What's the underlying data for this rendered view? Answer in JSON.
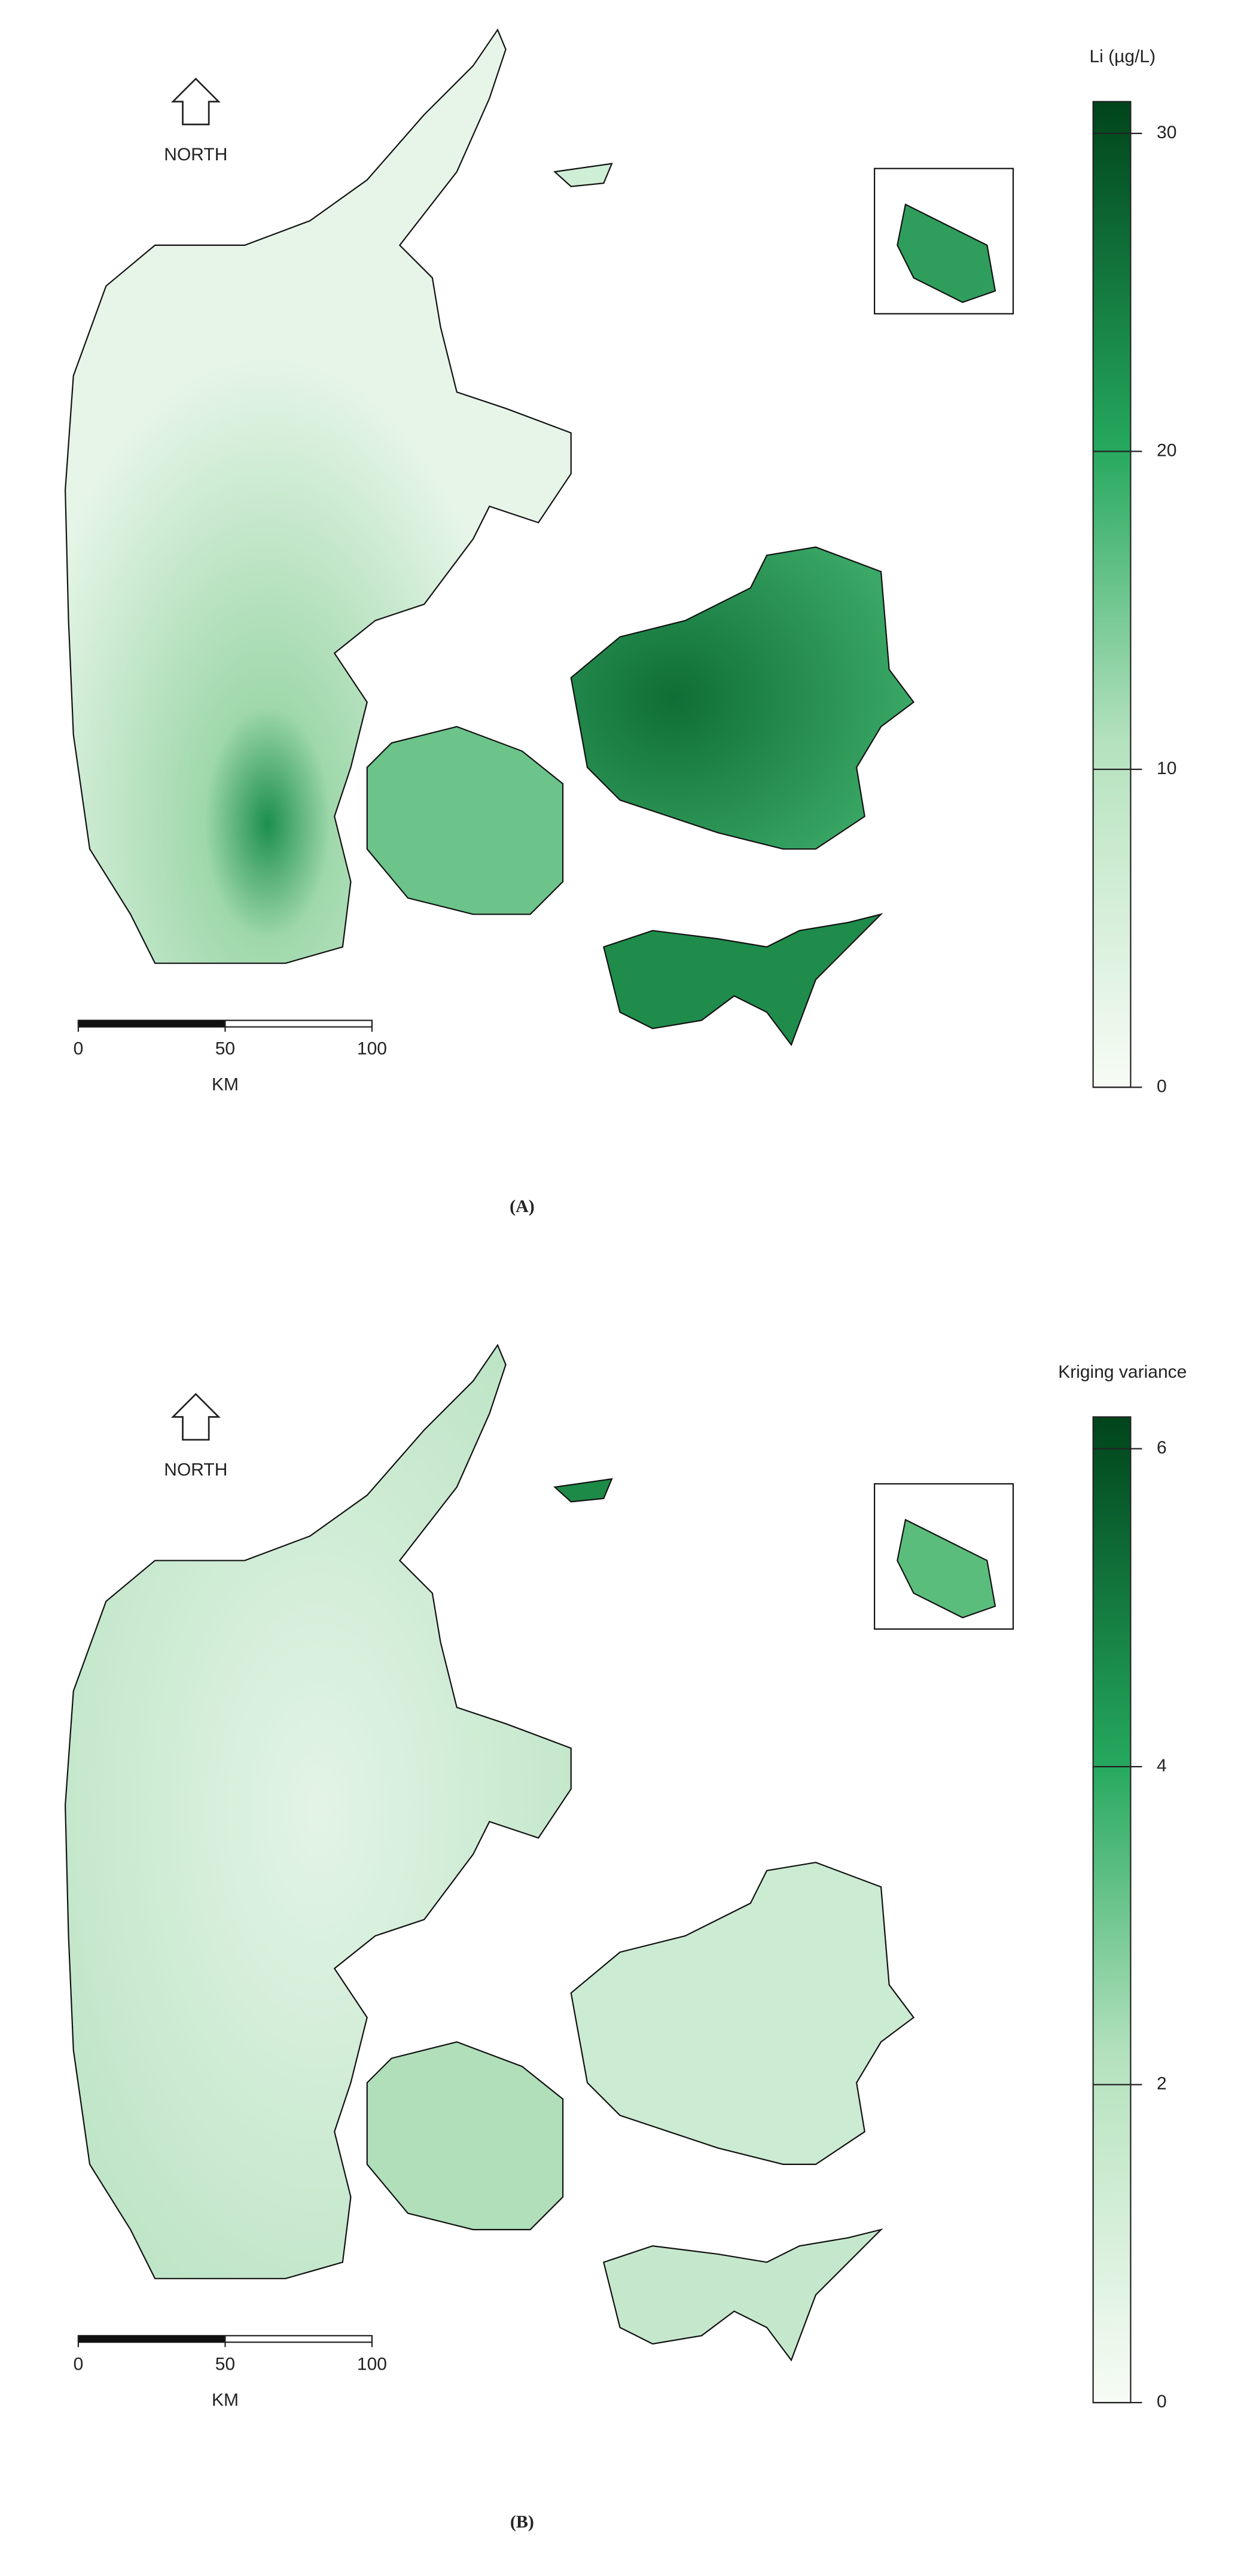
{
  "panels": [
    {
      "label": "(A)",
      "legend_title": "Li (µg/L)",
      "north": "NORTH",
      "scale_unit": "KM",
      "scale_ticks": [
        0,
        50,
        100
      ],
      "colorbar": {
        "range": [
          0,
          31
        ],
        "ticks": [
          0,
          10,
          20,
          30
        ]
      }
    },
    {
      "label": "(B)",
      "legend_title": "Kriging variance",
      "north": "NORTH",
      "scale_unit": "KM",
      "scale_ticks": [
        0,
        50,
        100
      ],
      "colorbar": {
        "range": [
          0,
          6.2
        ],
        "ticks": [
          0,
          2,
          4,
          6
        ]
      }
    }
  ]
}
